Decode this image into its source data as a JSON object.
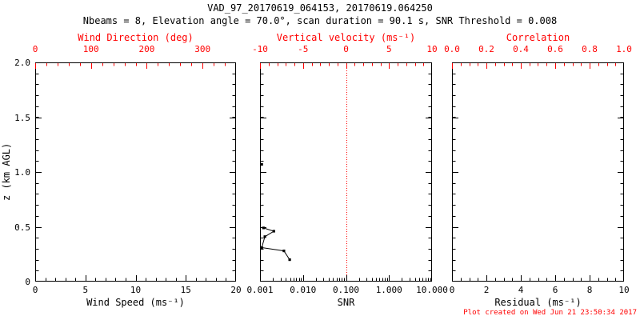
{
  "title": "VAD_97_20170619_064153, 20170619.064250",
  "subtitle": "Nbeams = 8, Elevation angle = 70.0°, scan duration = 90.1 s, SNR Threshold = 0.008",
  "footer_note": "Plot created on Wed Jun 21 23:50:34 2017",
  "colors": {
    "accent_red": "#ff0000",
    "axis_black": "#000000",
    "background": "#ffffff",
    "data_black": "#000000"
  },
  "y_axis": {
    "label": "z (km AGL)",
    "range": [
      0,
      2
    ],
    "tick_values": [
      2.0,
      1.5,
      1.0,
      0.5,
      0
    ],
    "tick_labels": [
      "2.0",
      "1.5",
      "1.0",
      "0.5",
      "0"
    ],
    "minor_step": 0.1
  },
  "chart_data": [
    {
      "type": "scatter",
      "panel": "wind",
      "top_axis": {
        "label": "Wind Direction (deg)",
        "range": [
          0,
          360
        ],
        "ticks": [
          0,
          100,
          200,
          300
        ],
        "tick_labels": [
          "0",
          "100",
          "200",
          "300"
        ],
        "minor_step": 20,
        "scale": "linear",
        "color": "#ff0000"
      },
      "bottom_axis": {
        "label": "Wind Speed (ms⁻¹)",
        "range": [
          0,
          20
        ],
        "ticks": [
          0,
          5,
          10,
          15,
          20
        ],
        "tick_labels": [
          "0",
          "5",
          "10",
          "15",
          "20"
        ],
        "minor_step": 1,
        "scale": "linear"
      },
      "ylabel": "z (km AGL)",
      "ylim": [
        0,
        2
      ],
      "grid": false,
      "series": []
    },
    {
      "type": "line",
      "panel": "snr",
      "top_axis": {
        "label": "Vertical velocity (ms⁻¹)",
        "range": [
          -10,
          10
        ],
        "ticks": [
          -10,
          -5,
          0,
          5,
          10
        ],
        "tick_labels": [
          "-10",
          "-5",
          "0",
          "5",
          "10"
        ],
        "minor_step": 1,
        "scale": "linear",
        "color": "#ff0000"
      },
      "bottom_axis": {
        "label": "SNR",
        "range": [
          0.001,
          10
        ],
        "ticks": [
          0.001,
          0.01,
          0.1,
          1,
          10
        ],
        "tick_labels": [
          "0.001",
          "0.010",
          "0.100",
          "1.000",
          "10.000"
        ],
        "scale": "log"
      },
      "reference_line": {
        "axis": "top",
        "value": 0,
        "color": "#ff0000",
        "style": "dotted"
      },
      "ylim": [
        0,
        2
      ],
      "grid": false,
      "series": [
        {
          "name": "snr-point-upper",
          "connect": false,
          "marker": "square",
          "color": "#000000",
          "points": [
            {
              "x": 0.0011,
              "z": 1.07
            }
          ]
        },
        {
          "name": "snr-profile-lower",
          "connect": true,
          "marker": "square",
          "color": "#000000",
          "points": [
            {
              "x": 0.0012,
              "z": 0.49
            },
            {
              "x": 0.0021,
              "z": 0.46
            },
            {
              "x": 0.0013,
              "z": 0.41
            },
            {
              "x": 0.0011,
              "z": 0.31
            },
            {
              "x": 0.0036,
              "z": 0.28
            },
            {
              "x": 0.0049,
              "z": 0.2
            }
          ]
        }
      ]
    },
    {
      "type": "scatter",
      "panel": "residual",
      "top_axis": {
        "label": "Correlation",
        "range": [
          0,
          1
        ],
        "ticks": [
          0,
          0.2,
          0.4,
          0.6,
          0.8,
          1
        ],
        "tick_labels": [
          "0.0",
          "0.2",
          "0.4",
          "0.6",
          "0.8",
          "1.0"
        ],
        "minor_step": 0.05,
        "scale": "linear",
        "color": "#ff0000"
      },
      "bottom_axis": {
        "label": "Residual (ms⁻¹)",
        "range": [
          0,
          10
        ],
        "ticks": [
          0,
          2,
          4,
          6,
          8,
          10
        ],
        "tick_labels": [
          "0",
          "2",
          "4",
          "6",
          "8",
          "10"
        ],
        "minor_step": 0.5,
        "scale": "linear"
      },
      "ylim": [
        0,
        2
      ],
      "grid": false,
      "series": []
    }
  ]
}
